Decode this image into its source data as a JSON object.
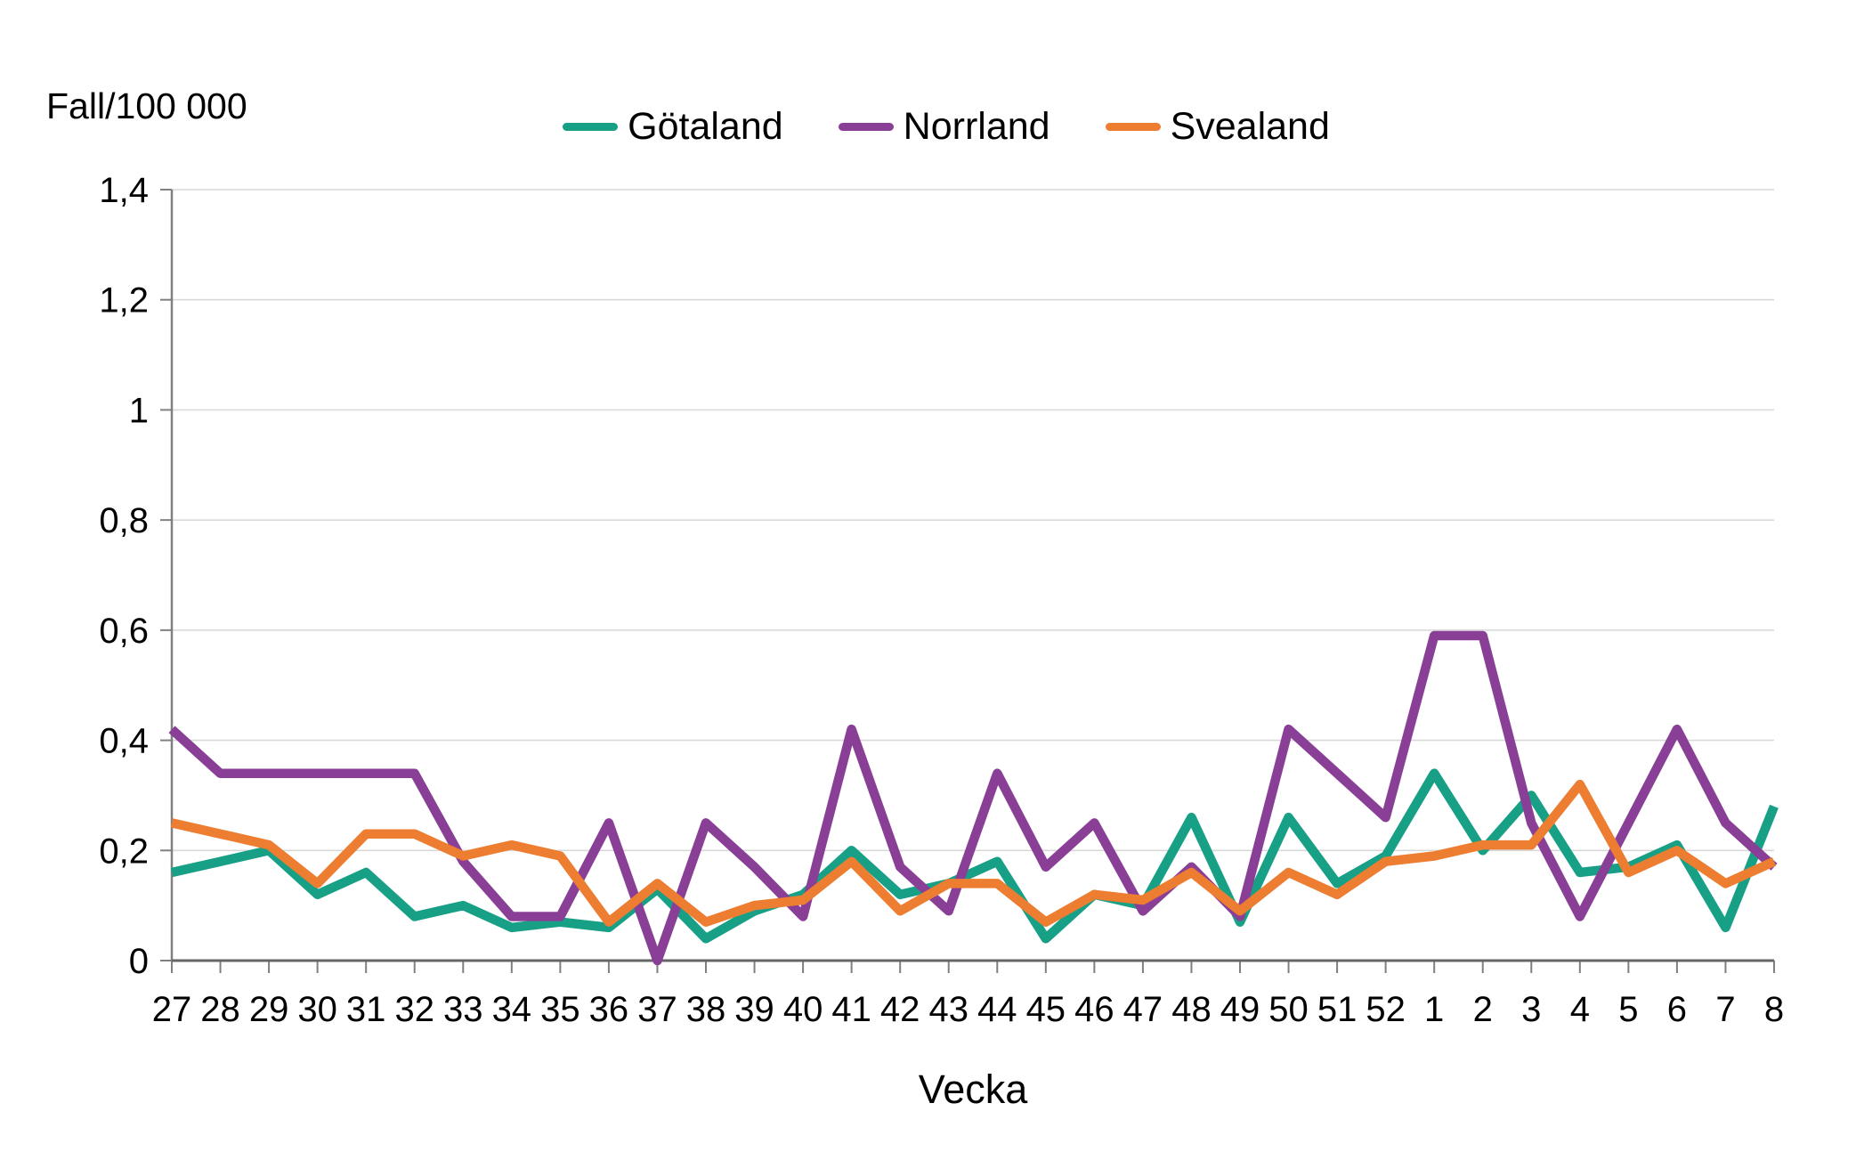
{
  "chart_data": {
    "type": "line",
    "title": "",
    "ylabel": "Fall/100 000",
    "xlabel": "Vecka",
    "categories": [
      "27",
      "28",
      "29",
      "30",
      "31",
      "32",
      "33",
      "34",
      "35",
      "36",
      "37",
      "38",
      "39",
      "40",
      "41",
      "42",
      "43",
      "44",
      "45",
      "46",
      "47",
      "48",
      "49",
      "50",
      "51",
      "52",
      "1",
      "2",
      "3",
      "4",
      "5",
      "6",
      "7",
      "8"
    ],
    "series": [
      {
        "name": "Götaland",
        "color": "#17A086",
        "values": [
          0.16,
          0.18,
          0.2,
          0.12,
          0.16,
          0.08,
          0.1,
          0.06,
          0.07,
          0.06,
          0.13,
          0.04,
          0.09,
          0.12,
          0.2,
          0.12,
          0.14,
          0.18,
          0.04,
          0.12,
          0.1,
          0.26,
          0.07,
          0.26,
          0.14,
          0.19,
          0.34,
          0.2,
          0.3,
          0.16,
          0.17,
          0.21,
          0.06,
          0.28
        ]
      },
      {
        "name": "Norrland",
        "color": "#8A3F97",
        "values": [
          0.42,
          0.34,
          0.34,
          0.34,
          0.34,
          0.34,
          0.18,
          0.08,
          0.08,
          0.25,
          0.0,
          0.25,
          0.17,
          0.08,
          0.42,
          0.17,
          0.09,
          0.34,
          0.17,
          0.25,
          0.09,
          0.17,
          0.08,
          0.42,
          0.34,
          0.26,
          0.59,
          0.59,
          0.25,
          0.08,
          0.25,
          0.42,
          0.25,
          0.17
        ]
      },
      {
        "name": "Svealand",
        "color": "#ED7D31",
        "values": [
          0.25,
          0.23,
          0.21,
          0.14,
          0.23,
          0.23,
          0.19,
          0.21,
          0.19,
          0.07,
          0.14,
          0.07,
          0.1,
          0.11,
          0.18,
          0.09,
          0.14,
          0.14,
          0.07,
          0.12,
          0.11,
          0.16,
          0.09,
          0.16,
          0.12,
          0.18,
          0.19,
          0.21,
          0.21,
          0.32,
          0.16,
          0.2,
          0.14,
          0.18
        ]
      }
    ],
    "ylim": [
      0,
      1.4
    ],
    "ytick_step": 0.2,
    "ytick_labels": [
      "0",
      "0,2",
      "0,4",
      "0,6",
      "0,8",
      "1",
      "1,2",
      "1,4"
    ],
    "grid": true,
    "legend_position": "top",
    "decimal_separator": ","
  },
  "style_colors": {
    "gridline": "#D9D9D9",
    "y_axis": "#808080",
    "x_axis": "#666666",
    "tick": "#808080",
    "text": "#000000"
  }
}
